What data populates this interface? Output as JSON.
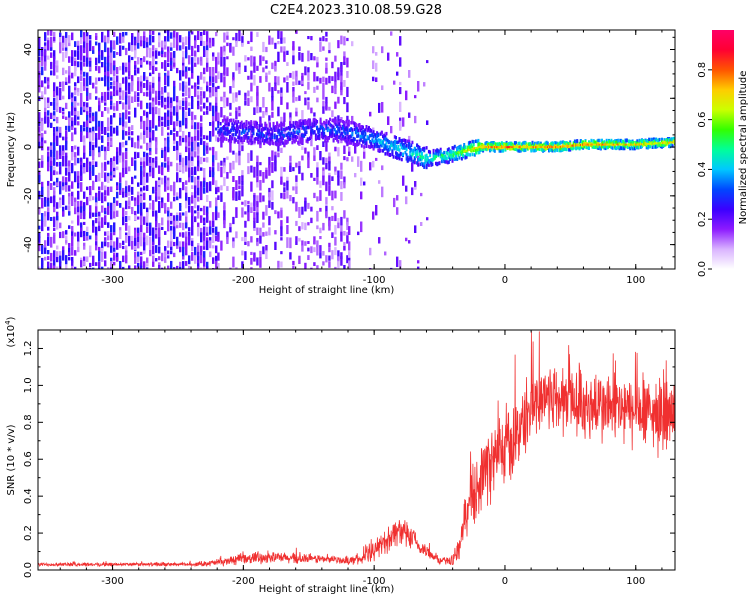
{
  "figure": {
    "title": "C2E4.2023.310.08.59.G28"
  },
  "chart_data": [
    {
      "type": "heatmap",
      "xlabel": "Height of straight line (km)",
      "ylabel": "Frequency (Hz)",
      "xlim": [
        -357,
        130
      ],
      "ylim": [
        -50,
        48
      ],
      "x_ticks": [
        -300,
        -200,
        -100,
        0,
        100
      ],
      "x_tick_labels": [
        "-300",
        "-200",
        "-100",
        "0",
        "100"
      ],
      "y_ticks": [
        -40,
        -20,
        0,
        20,
        40
      ],
      "y_tick_labels": [
        "-40",
        "-20",
        "0",
        "20",
        "40"
      ],
      "colorbar": {
        "label": "Normalized spectral amplitude",
        "range": [
          0,
          0.96
        ],
        "ticks": [
          0.0,
          0.2,
          0.4,
          0.6,
          0.8
        ],
        "tick_labels": [
          "0.0",
          "0.2",
          "0.4",
          "0.6",
          "0.8"
        ],
        "colormap": [
          "#ffffff",
          "#d9b3ff",
          "#8c1aff",
          "#3a00ff",
          "#0047ff",
          "#00c8ff",
          "#00ff99",
          "#33ff00",
          "#ccff00",
          "#ffcc00",
          "#ff5500",
          "#ff0033",
          "#ff0066"
        ]
      },
      "signal_track": [
        {
          "x": -220,
          "freq": 7,
          "amp": 0.3
        },
        {
          "x": -200,
          "freq": 6,
          "amp": 0.32
        },
        {
          "x": -180,
          "freq": 5,
          "amp": 0.32
        },
        {
          "x": -160,
          "freq": 6,
          "amp": 0.33
        },
        {
          "x": -140,
          "freq": 7,
          "amp": 0.33
        },
        {
          "x": -120,
          "freq": 6,
          "amp": 0.35
        },
        {
          "x": -100,
          "freq": 3,
          "amp": 0.4
        },
        {
          "x": -80,
          "freq": -1,
          "amp": 0.45
        },
        {
          "x": -60,
          "freq": -5,
          "amp": 0.5
        },
        {
          "x": -40,
          "freq": -3,
          "amp": 0.55
        },
        {
          "x": -20,
          "freq": 0,
          "amp": 0.75
        },
        {
          "x": 0,
          "freq": 0,
          "amp": 0.8
        },
        {
          "x": 20,
          "freq": 0,
          "amp": 0.75
        },
        {
          "x": 40,
          "freq": 0,
          "amp": 0.8
        },
        {
          "x": 60,
          "freq": 1,
          "amp": 0.75
        },
        {
          "x": 80,
          "freq": 1,
          "amp": 0.75
        },
        {
          "x": 100,
          "freq": 1,
          "amp": 0.7
        },
        {
          "x": 130,
          "freq": 2,
          "amp": 0.7
        }
      ],
      "noise_regions": [
        {
          "x_range": [
            -357,
            -220
          ],
          "density": "high"
        },
        {
          "x_range": [
            -220,
            -120
          ],
          "density": "medium"
        },
        {
          "x_range": [
            -120,
            -60
          ],
          "density": "low"
        }
      ],
      "series_color": "#ff0000"
    },
    {
      "type": "line",
      "xlabel": "Height of straight line (km)",
      "ylabel": "SNR (10 * v/v)",
      "y_multiplier": "(x10",
      "y_multiplier_exp": "4",
      "y_multiplier_close": ")",
      "xlim": [
        -357,
        130
      ],
      "ylim": [
        0,
        1.3
      ],
      "x_ticks": [
        -300,
        -200,
        -100,
        0,
        100
      ],
      "x_tick_labels": [
        "-300",
        "-200",
        "-100",
        "0",
        "100"
      ],
      "y_ticks": [
        0.0,
        0.2,
        0.4,
        0.6,
        0.8,
        1.0,
        1.2
      ],
      "y_tick_labels": [
        "0.0",
        "0.2",
        "0.4",
        "0.6",
        "0.8",
        "1.0",
        "1.2"
      ],
      "color": "#f03030",
      "x": [
        -357,
        -340,
        -320,
        -300,
        -280,
        -260,
        -240,
        -220,
        -200,
        -180,
        -160,
        -140,
        -120,
        -110,
        -100,
        -95,
        -90,
        -85,
        -80,
        -75,
        -70,
        -65,
        -60,
        -55,
        -50,
        -45,
        -40,
        -35,
        -30,
        -25,
        -20,
        -15,
        -10,
        -5,
        0,
        5,
        10,
        15,
        20,
        25,
        30,
        35,
        40,
        50,
        60,
        70,
        80,
        90,
        100,
        110,
        120,
        130
      ],
      "y": [
        0.03,
        0.03,
        0.03,
        0.03,
        0.03,
        0.03,
        0.03,
        0.04,
        0.06,
        0.07,
        0.06,
        0.06,
        0.05,
        0.06,
        0.1,
        0.14,
        0.16,
        0.2,
        0.22,
        0.18,
        0.16,
        0.12,
        0.1,
        0.08,
        0.05,
        0.05,
        0.05,
        0.12,
        0.3,
        0.4,
        0.48,
        0.55,
        0.58,
        0.62,
        0.65,
        0.68,
        0.75,
        0.82,
        0.88,
        0.92,
        0.95,
        0.95,
        0.92,
        0.92,
        0.9,
        0.88,
        0.88,
        0.86,
        0.85,
        0.84,
        0.84,
        0.82
      ],
      "band": [
        0.01,
        0.01,
        0.01,
        0.01,
        0.01,
        0.01,
        0.01,
        0.02,
        0.03,
        0.03,
        0.03,
        0.02,
        0.02,
        0.03,
        0.05,
        0.06,
        0.07,
        0.08,
        0.08,
        0.07,
        0.06,
        0.05,
        0.04,
        0.03,
        0.02,
        0.02,
        0.03,
        0.06,
        0.12,
        0.16,
        0.18,
        0.2,
        0.2,
        0.2,
        0.2,
        0.2,
        0.2,
        0.2,
        0.2,
        0.2,
        0.2,
        0.2,
        0.2,
        0.2,
        0.2,
        0.2,
        0.2,
        0.2,
        0.2,
        0.2,
        0.2,
        0.2
      ]
    }
  ]
}
